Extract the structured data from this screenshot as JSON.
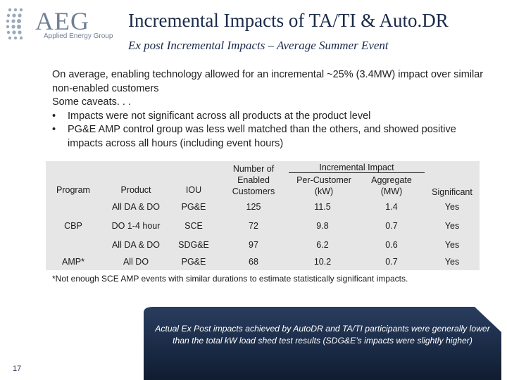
{
  "logo": {
    "word": "AEG",
    "subtitle": "Applied Energy Group"
  },
  "header": {
    "title": "Incremental Impacts of TA/TI & Auto.DR",
    "subtitle": "Ex post Incremental Impacts – Average Summer Event"
  },
  "intro": {
    "line1": "On average, enabling technology allowed for an incremental ~25% (3.4MW) impact over similar non-enabled customers",
    "line2": "Some caveats. . .",
    "bullets": [
      "Impacts were not significant across all products at the product level",
      "PG&E AMP control group was less well matched than the others, and showed positive impacts across all hours (including event hours)"
    ],
    "bullet_glyph": "•"
  },
  "table": {
    "headers": {
      "program": "Program",
      "product": "Product",
      "iou": "IOU",
      "enabled": "Number of Enabled Customers",
      "incremental": "Incremental Impact",
      "per_customer": "Per-Customer (kW)",
      "aggregate": "Aggregate (MW)",
      "significant": "Significant"
    },
    "program_labels": [
      "CBP",
      "AMP*"
    ],
    "rows": [
      {
        "product": "All DA & DO",
        "iou": "PG&E",
        "enabled": "125",
        "per_customer": "11.5",
        "aggregate": "1.4",
        "significant": "Yes"
      },
      {
        "product": "DO 1-4 hour",
        "iou": "SCE",
        "enabled": "72",
        "per_customer": "9.8",
        "aggregate": "0.7",
        "significant": "Yes"
      },
      {
        "product": "All DA & DO",
        "iou": "SDG&E",
        "enabled": "97",
        "per_customer": "6.2",
        "aggregate": "0.6",
        "significant": "Yes"
      },
      {
        "product": "All DO",
        "iou": "PG&E",
        "enabled": "68",
        "per_customer": "10.2",
        "aggregate": "0.7",
        "significant": "Yes"
      }
    ],
    "footnote": "*Not enough SCE AMP events with similar durations to estimate statistically significant impacts."
  },
  "callout": {
    "text": "Actual Ex Post impacts achieved by AutoDR and TA/TI participants were generally lower than the total kW load shed test results (SDG&E’s impacts were slightly higher)"
  },
  "slide_number": "17",
  "colors": {
    "navy": "#1a2a4a",
    "callout_dark": "#1c2d49",
    "table_bg": "#e6e6e6",
    "logo_gray": "#6f7f96"
  }
}
